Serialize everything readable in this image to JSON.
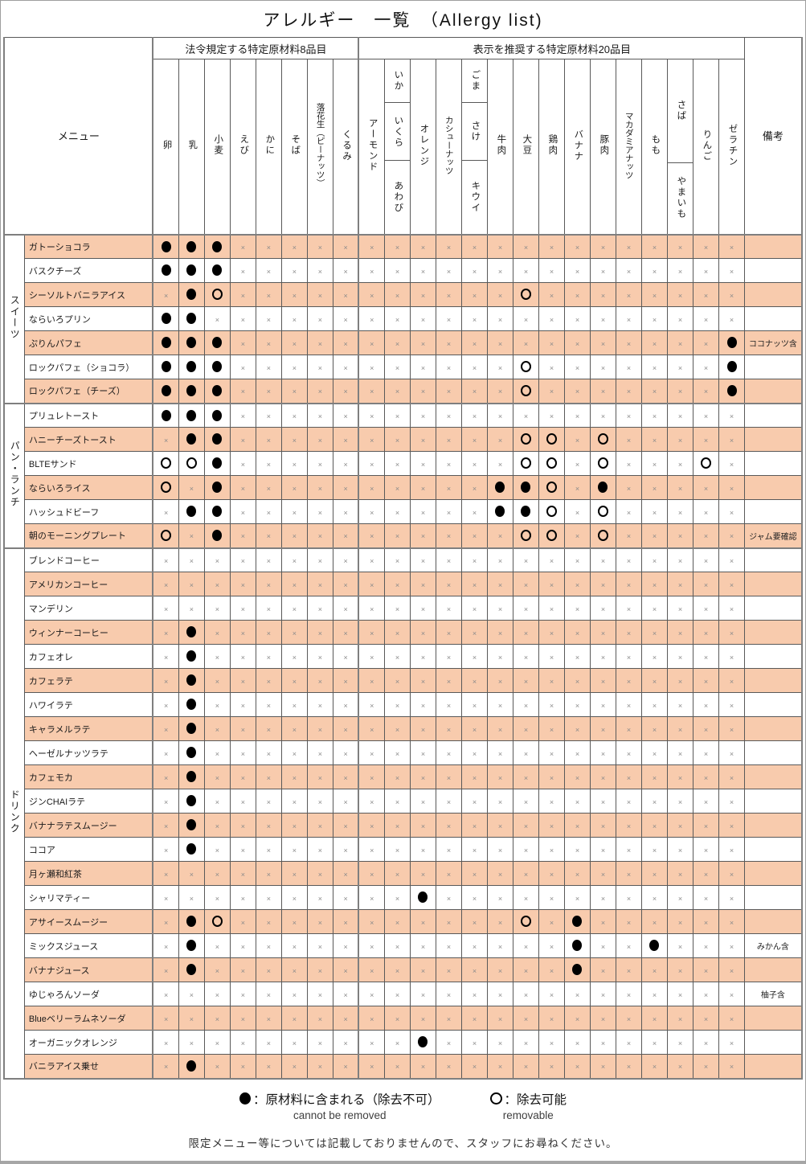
{
  "title": "アレルギー　一覧　（Allergy list)",
  "header": {
    "menu_label": "メニュー",
    "remarks_label": "備考",
    "groups": [
      {
        "label": "法令規定する特定原材料8品目",
        "span": 8
      },
      {
        "label": "表示を推奨する特定原材料20品目",
        "span": 15
      }
    ],
    "allergens": [
      {
        "parts": [
          "卵"
        ]
      },
      {
        "parts": [
          "乳"
        ]
      },
      {
        "parts": [
          "小麦"
        ]
      },
      {
        "parts": [
          "えび"
        ]
      },
      {
        "parts": [
          "かに"
        ]
      },
      {
        "parts": [
          "そば"
        ]
      },
      {
        "parts": [
          "落花生（ピーナッツ）"
        ]
      },
      {
        "parts": [
          "くるみ"
        ]
      },
      {
        "parts": [
          "アーモンド"
        ]
      },
      {
        "parts": [
          "いか",
          "いくら",
          "あわび"
        ]
      },
      {
        "parts": [
          "オレンジ"
        ]
      },
      {
        "parts": [
          "カシューナッツ"
        ]
      },
      {
        "parts": [
          "ごま",
          "さけ",
          "キウイ"
        ]
      },
      {
        "parts": [
          "牛肉"
        ]
      },
      {
        "parts": [
          "大豆"
        ]
      },
      {
        "parts": [
          "鶏肉"
        ]
      },
      {
        "parts": [
          "バナナ"
        ]
      },
      {
        "parts": [
          "豚肉"
        ]
      },
      {
        "parts": [
          "マカダミアナッツ"
        ]
      },
      {
        "parts": [
          "もも"
        ]
      },
      {
        "parts": [
          "さば",
          "やまいも"
        ]
      },
      {
        "parts": [
          "りんご"
        ]
      },
      {
        "parts": [
          "ゼラチン"
        ]
      }
    ]
  },
  "sections": [
    {
      "label": "スイーツ",
      "rows": [
        {
          "name": "ガトーショコラ",
          "marks": "bbbxxxxxxxxxxxxxxxxxxxx",
          "remark": ""
        },
        {
          "name": "バスクチーズ",
          "marks": "bbbxxxxxxxxxxxxxxxxxxxx",
          "remark": ""
        },
        {
          "name": "シーソルトバニラアイス",
          "marks": "xbwxxxxxxxxxxxwxxxxxxxx",
          "remark": ""
        },
        {
          "name": "ならいろプリン",
          "marks": "bbxxxxxxxxxxxxxxxxxxxxx",
          "remark": ""
        },
        {
          "name": "ぷりんパフェ",
          "marks": "bbbxxxxxxxxxxxxxxxxxxxb",
          "remark": "ココナッツ含"
        },
        {
          "name": "ロックパフェ（ショコラ）",
          "marks": "bbbxxxxxxxxxxxwxxxxxxxb",
          "remark": ""
        },
        {
          "name": "ロックパフェ（チーズ）",
          "marks": "bbbxxxxxxxxxxxwxxxxxxxb",
          "remark": ""
        }
      ]
    },
    {
      "label": "パン・ランチ",
      "rows": [
        {
          "name": "プリュレトースト",
          "marks": "bbbxxxxxxxxxxxxxxxxxxxx",
          "remark": ""
        },
        {
          "name": "ハニーチーズトースト",
          "marks": "xbbxxxxxxxxxxxwwxwxxxxx",
          "remark": ""
        },
        {
          "name": "BLTEサンド",
          "marks": "wwbxxxxxxxxxxxwwxwxxxwx",
          "remark": ""
        },
        {
          "name": "ならいろライス",
          "marks": "wxbxxxxxxxxxxbbwxbxxxxx",
          "remark": ""
        },
        {
          "name": "ハッシュドビーフ",
          "marks": "xbbxxxxxxxxxxbbwxwxxxxx",
          "remark": ""
        },
        {
          "name": "朝のモーニングプレート",
          "marks": "wxbxxxxxxxxxxxwwxwxxxxx",
          "remark": "ジャム要確認"
        }
      ]
    },
    {
      "label": "ドリンク",
      "rows": [
        {
          "name": "ブレンドコーヒー",
          "marks": "xxxxxxxxxxxxxxxxxxxxxxx",
          "remark": ""
        },
        {
          "name": "アメリカンコーヒー",
          "marks": "xxxxxxxxxxxxxxxxxxxxxxx",
          "remark": ""
        },
        {
          "name": "マンデリン",
          "marks": "xxxxxxxxxxxxxxxxxxxxxxx",
          "remark": ""
        },
        {
          "name": "ウィンナーコーヒー",
          "marks": "xbxxxxxxxxxxxxxxxxxxxxx",
          "remark": ""
        },
        {
          "name": "カフェオレ",
          "marks": "xbxxxxxxxxxxxxxxxxxxxxx",
          "remark": ""
        },
        {
          "name": "カフェラテ",
          "marks": "xbxxxxxxxxxxxxxxxxxxxxx",
          "remark": ""
        },
        {
          "name": "ハワイラテ",
          "marks": "xbxxxxxxxxxxxxxxxxxxxxx",
          "remark": ""
        },
        {
          "name": "キャラメルラテ",
          "marks": "xbxxxxxxxxxxxxxxxxxxxxx",
          "remark": ""
        },
        {
          "name": "ヘーゼルナッツラテ",
          "marks": "xbxxxxxxxxxxxxxxxxxxxxx",
          "remark": ""
        },
        {
          "name": "カフェモカ",
          "marks": "xbxxxxxxxxxxxxxxxxxxxxx",
          "remark": ""
        },
        {
          "name": "ジンCHAIラテ",
          "marks": "xbxxxxxxxxxxxxxxxxxxxxx",
          "remark": ""
        },
        {
          "name": "バナナラテスムージー",
          "marks": "xbxxxxxxxxxxxxxxxxxxxxx",
          "remark": ""
        },
        {
          "name": "ココア",
          "marks": "xbxxxxxxxxxxxxxxxxxxxxx",
          "remark": ""
        },
        {
          "name": "月ヶ瀬和紅茶",
          "marks": "xxxxxxxxxxxxxxxxxxxxxxx",
          "remark": ""
        },
        {
          "name": "シャリマティー",
          "marks": "xxxxxxxxxxbxxxxxxxxxxxx",
          "remark": ""
        },
        {
          "name": "アサイースムージー",
          "marks": "xbwxxxxxxxxxxxwxbxxxxxx",
          "remark": ""
        },
        {
          "name": "ミックスジュース",
          "marks": "xbxxxxxxxxxxxxxxbxxbxxx",
          "remark": "みかん含"
        },
        {
          "name": "バナナジュース",
          "marks": "xbxxxxxxxxxxxxxxbxxxxxx",
          "remark": ""
        },
        {
          "name": "ゆじゃろんソーダ",
          "marks": "xxxxxxxxxxxxxxxxxxxxxxx",
          "remark": "柚子含"
        },
        {
          "name": "Blueベリーラムネソーダ",
          "marks": "xxxxxxxxxxxxxxxxxxxxxxx",
          "remark": ""
        },
        {
          "name": "オーガニックオレンジ",
          "marks": "xxxxxxxxxxbxxxxxxxxxxxx",
          "remark": ""
        },
        {
          "name": "バニラアイス乗せ",
          "marks": "xbxxxxxxxxxxxxxxxxxxxxx",
          "remark": ""
        }
      ]
    }
  ],
  "legend": {
    "filled_jp": "：原材料に含まれる（除去不可）",
    "filled_en": "cannot be removed",
    "open_jp": "：除去可能",
    "open_en": "removable"
  },
  "note": "限定メニュー等については記載しておりませんので、スタッフにお尋ねください。"
}
